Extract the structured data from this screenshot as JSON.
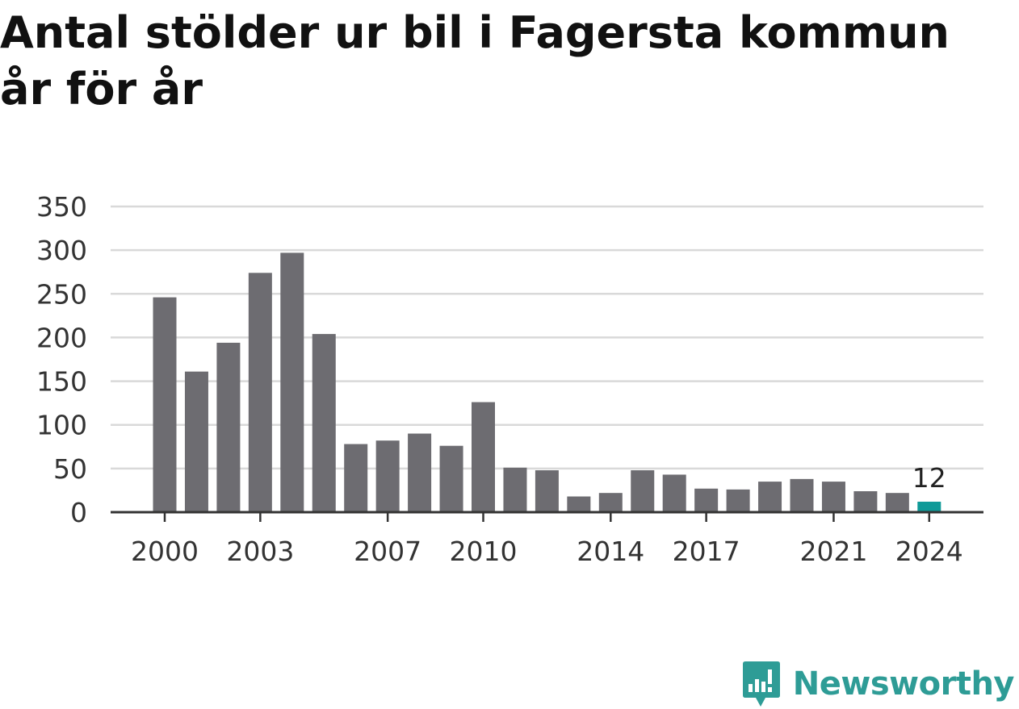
{
  "title": "Antal stölder ur bil i Fagersta kommun år för år",
  "brand": {
    "name": "Newsworthy",
    "icon": "newsworthy-logo-icon",
    "color": "#2e9c96"
  },
  "colors": {
    "bar": "#6d6c71",
    "highlight": "#0f9a98",
    "grid": "#d9d9d9",
    "axis": "#333333"
  },
  "chart_data": {
    "type": "bar",
    "x": [
      2000,
      2001,
      2002,
      2003,
      2004,
      2005,
      2006,
      2007,
      2008,
      2009,
      2010,
      2011,
      2012,
      2013,
      2014,
      2015,
      2016,
      2017,
      2018,
      2019,
      2020,
      2021,
      2022,
      2023,
      2024
    ],
    "values": [
      246,
      161,
      194,
      274,
      297,
      204,
      78,
      82,
      90,
      76,
      126,
      51,
      48,
      18,
      22,
      48,
      43,
      27,
      26,
      35,
      38,
      35,
      24,
      22,
      12
    ],
    "xticks": [
      "2000",
      "2003",
      "2007",
      "2010",
      "2014",
      "2017",
      "2021",
      "2024"
    ],
    "yticks": [
      0,
      50,
      100,
      150,
      200,
      250,
      300,
      350
    ],
    "ylim": [
      0,
      350
    ],
    "highlight": {
      "year": 2024,
      "label": "12"
    },
    "grid": true,
    "legend": "none",
    "xlabel": "",
    "ylabel": ""
  }
}
